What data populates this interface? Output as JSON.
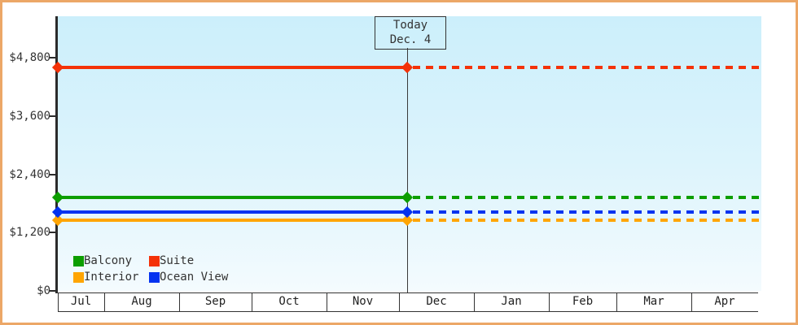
{
  "frame": {
    "border_color": "#eca767",
    "plot_background_top": "#cceffb",
    "plot_background_bottom": "#f4fbfe"
  },
  "chart_data": {
    "type": "line",
    "title": "",
    "xlabel": "",
    "ylabel": "",
    "x_categories": [
      "Jul",
      "Aug",
      "Sep",
      "Oct",
      "Nov",
      "Dec",
      "Jan",
      "Feb",
      "Mar",
      "Apr"
    ],
    "y_axis": {
      "ylim": [
        0,
        5650
      ],
      "ticks": [
        {
          "value": 0,
          "label": "$0"
        },
        {
          "value": 1200,
          "label": "$1,200"
        },
        {
          "value": 2400,
          "label": "$2,400"
        },
        {
          "value": 3600,
          "label": "$3,600"
        },
        {
          "value": 4800,
          "label": "$4,800"
        }
      ]
    },
    "today_marker": {
      "line1": "Today",
      "line2": "Dec. 4"
    },
    "line_style": {
      "before_today": "solid",
      "after_today": "dashed"
    },
    "grid": false,
    "legend_position": "bottom-left-inside",
    "series": [
      {
        "name": "Balcony",
        "color": "#0d9e00",
        "value": 1920
      },
      {
        "name": "Suite",
        "color": "#f43208",
        "value": 4600
      },
      {
        "name": "Interior",
        "color": "#ffa502",
        "value": 1455
      },
      {
        "name": "Ocean View",
        "color": "#0433f0",
        "value": 1615
      }
    ]
  }
}
